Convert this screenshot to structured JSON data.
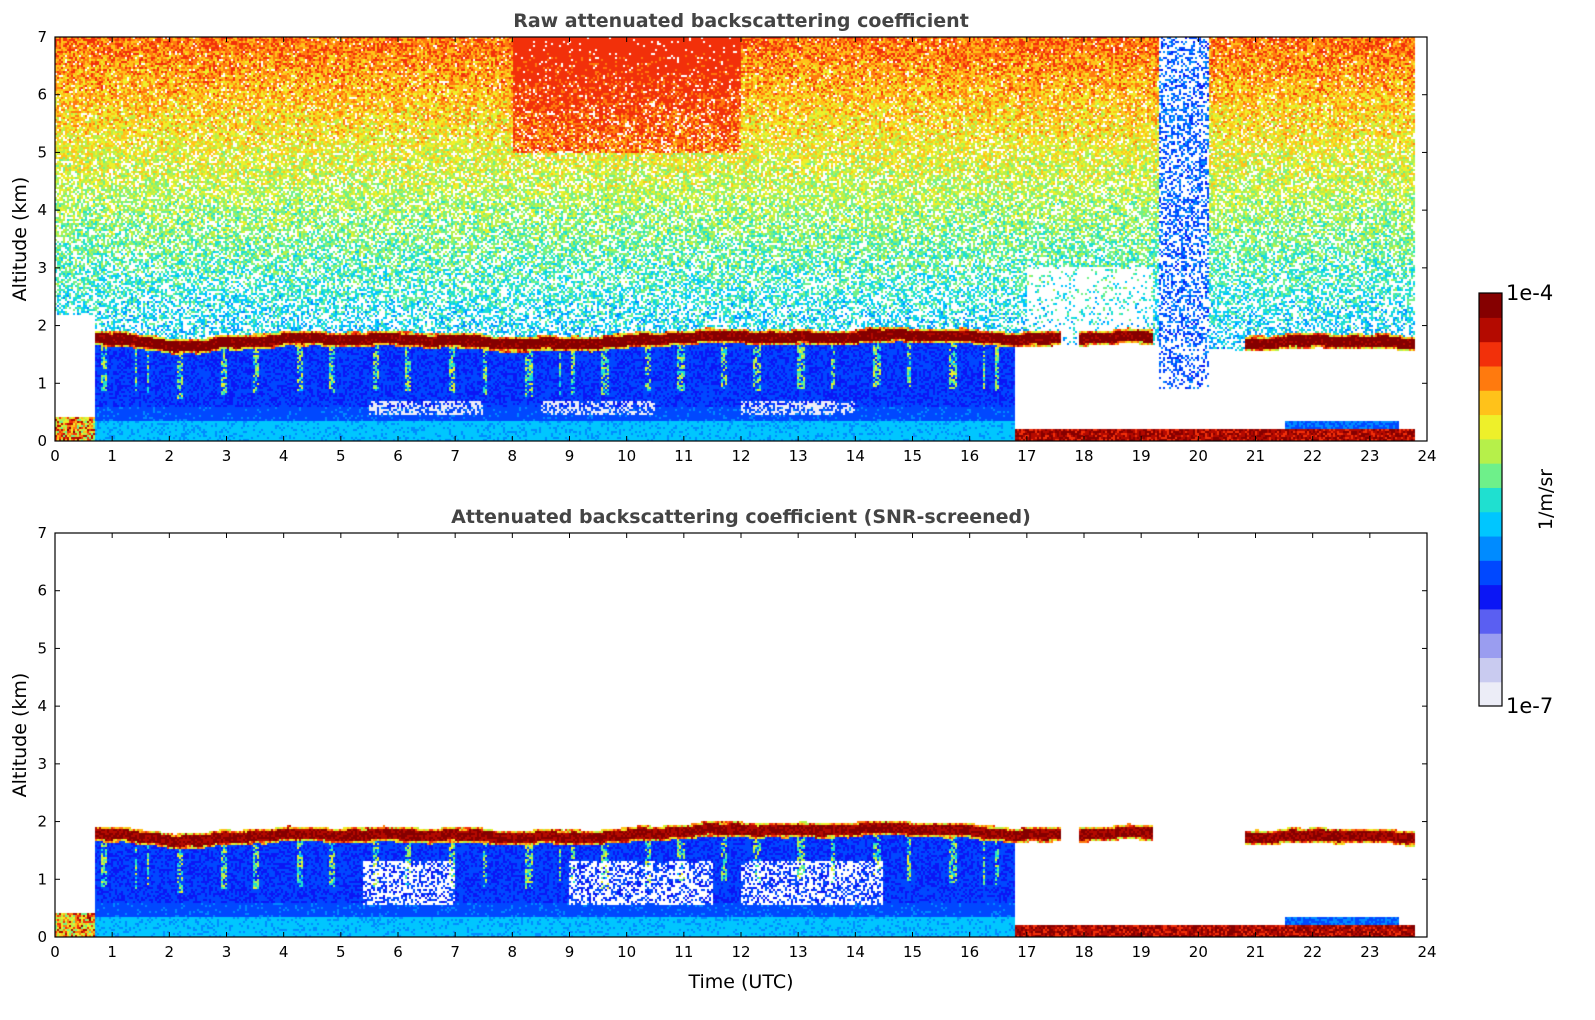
{
  "chart_data": [
    {
      "type": "heatmap",
      "title": "Raw attenuated backscattering coefficient",
      "xlabel": "",
      "ylabel": "Altitude (km)",
      "xlim": [
        0,
        24
      ],
      "ylim": [
        0,
        7
      ],
      "x_ticks": [
        "0",
        "1",
        "2",
        "3",
        "4",
        "5",
        "6",
        "7",
        "8",
        "9",
        "10",
        "11",
        "12",
        "13",
        "14",
        "15",
        "16",
        "17",
        "18",
        "19",
        "20",
        "21",
        "22",
        "23",
        "24"
      ],
      "y_ticks": [
        "0",
        "1",
        "2",
        "3",
        "4",
        "5",
        "6",
        "7"
      ],
      "mode": "raw",
      "features": {
        "boundary_layer_top_km": [
          [
            0.7,
            1.78
          ],
          [
            2.5,
            1.65
          ],
          [
            3.0,
            1.7
          ],
          [
            6.0,
            1.8
          ],
          [
            8.0,
            1.65
          ],
          [
            10.0,
            1.75
          ],
          [
            12.0,
            1.8
          ],
          [
            14.0,
            1.82
          ],
          [
            16.0,
            1.8
          ],
          [
            17.5,
            1.78
          ],
          [
            19.0,
            1.78
          ],
          [
            21.0,
            1.72
          ],
          [
            23.8,
            1.7
          ]
        ],
        "cloud_layer_span_hours": [
          [
            0.7,
            17.6
          ],
          [
            17.9,
            19.2
          ],
          [
            20.8,
            23.8
          ]
        ],
        "surface_layer_span_hours": [
          [
            0,
            0.6
          ],
          [
            16.8,
            23.8
          ]
        ],
        "blue_column_hours": [
          19.3,
          20.2
        ],
        "data_end_hour": 23.8
      }
    },
    {
      "type": "heatmap",
      "title": "Attenuated backscattering coefficient (SNR-screened)",
      "xlabel": "Time (UTC)",
      "ylabel": "Altitude (km)",
      "xlim": [
        0,
        24
      ],
      "ylim": [
        0,
        7
      ],
      "x_ticks": [
        "0",
        "1",
        "2",
        "3",
        "4",
        "5",
        "6",
        "7",
        "8",
        "9",
        "10",
        "11",
        "12",
        "13",
        "14",
        "15",
        "16",
        "17",
        "18",
        "19",
        "20",
        "21",
        "22",
        "23",
        "24"
      ],
      "y_ticks": [
        "0",
        "1",
        "2",
        "3",
        "4",
        "5",
        "6",
        "7"
      ],
      "mode": "screened",
      "features": {
        "boundary_layer_top_km": [
          [
            0.7,
            1.78
          ],
          [
            2.5,
            1.68
          ],
          [
            3.0,
            1.72
          ],
          [
            6.0,
            1.8
          ],
          [
            8.0,
            1.7
          ],
          [
            10.0,
            1.78
          ],
          [
            12.0,
            1.85
          ],
          [
            14.0,
            1.88
          ],
          [
            16.0,
            1.82
          ],
          [
            17.5,
            1.78
          ],
          [
            19.0,
            1.78
          ],
          [
            21.0,
            1.75
          ],
          [
            23.8,
            1.72
          ]
        ],
        "cloud_layer_span_hours": [
          [
            0.7,
            17.6
          ],
          [
            17.9,
            19.2
          ],
          [
            20.8,
            23.8
          ]
        ],
        "surface_layer_span_hours": [
          [
            0,
            0.6
          ],
          [
            16.8,
            23.8
          ]
        ],
        "data_end_hour": 23.8
      }
    }
  ],
  "colorbar": {
    "label": "1/m/sr",
    "max_label": "1e-4",
    "min_label": "1e-7",
    "colors": [
      "#ecedf7",
      "#c9cbf0",
      "#9a9df0",
      "#5a5ff2",
      "#0b16f5",
      "#0048ff",
      "#008bff",
      "#00c6ff",
      "#1fe0d0",
      "#6ef08a",
      "#b6f04a",
      "#eef02a",
      "#ffc21a",
      "#ff7a0e",
      "#f2300a",
      "#b40a00",
      "#850000"
    ]
  }
}
